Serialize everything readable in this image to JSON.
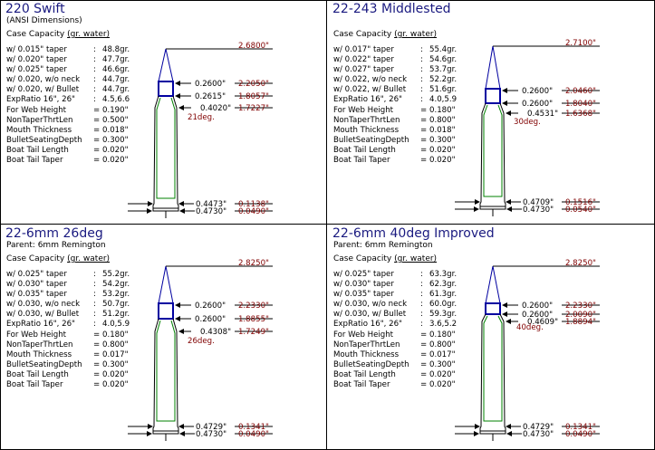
{
  "panels": [
    {
      "title": "220 Swift",
      "subtitle": "(ANSI Dimensions)",
      "capacity_label": "Case Capacity",
      "capacity_unit": "(gr. water)",
      "rows": [
        {
          "label": "w/  0.015\" taper",
          "sep": ":",
          "value": "48.8gr."
        },
        {
          "label": "w/  0.020\" taper",
          "sep": ":",
          "value": "47.7gr."
        },
        {
          "label": "w/  0.025\" taper",
          "sep": ":",
          "value": "46.6gr."
        },
        {
          "label": "w/  0.020,  w/o neck",
          "sep": ":",
          "value": "44.7gr."
        },
        {
          "label": "w/  0.020,  w/ Bullet",
          "sep": ":",
          "value": "44.7gr."
        },
        {
          "label": "ExpRatio 16\", 26\"",
          "sep": ":",
          "value": "4.5,6.6"
        },
        {
          "label": "For Web Height",
          "sep": "=",
          "value": "0.190\""
        },
        {
          "label": "NonTaperThrtLen",
          "sep": "=",
          "value": "0.500\""
        },
        {
          "label": "Mouth Thickness",
          "sep": "=",
          "value": "0.018\""
        },
        {
          "label": "BulletSeatingDepth",
          "sep": "=",
          "value": "0.300\""
        },
        {
          "label": "Boat Tail Length",
          "sep": "=",
          "value": "0.020\""
        },
        {
          "label": "Boat Tail Taper",
          "sep": "=",
          "value": "0.020\""
        }
      ],
      "dims": {
        "overall": "2.6800\"",
        "neck_dia": "0.2600\"",
        "neck_len": "2.2050\"",
        "shoulder_dia": "0.2615\"",
        "shoulder_len": "1.8057\"",
        "body_dia": "0.4020\"",
        "body_len": "1.7227\"",
        "angle": "21deg.",
        "base_dia": "0.4473\"",
        "base_len": "0.1138\"",
        "rim_dia": "0.4730\"",
        "rim_len": "0.0490\""
      }
    },
    {
      "title": "22-243 Middlested",
      "subtitle": "",
      "capacity_label": "Case Capacity",
      "capacity_unit": "(gr. water)",
      "rows": [
        {
          "label": "w/  0.017\" taper",
          "sep": ":",
          "value": "55.4gr."
        },
        {
          "label": "w/  0.022\" taper",
          "sep": ":",
          "value": "54.6gr."
        },
        {
          "label": "w/  0.027\" taper",
          "sep": ":",
          "value": "53.7gr."
        },
        {
          "label": "w/  0.022,  w/o neck",
          "sep": ":",
          "value": "52.2gr."
        },
        {
          "label": "w/  0.022,  w/ Bullet",
          "sep": ":",
          "value": "51.6gr."
        },
        {
          "label": "ExpRatio 16\", 26\"",
          "sep": ":",
          "value": "4.0,5.9"
        },
        {
          "label": "For Web Height",
          "sep": "=",
          "value": "0.180\""
        },
        {
          "label": "NonTaperThrtLen",
          "sep": "=",
          "value": "0.800\""
        },
        {
          "label": "Mouth Thickness",
          "sep": "=",
          "value": "0.018\""
        },
        {
          "label": "BulletSeatingDepth",
          "sep": "=",
          "value": "0.300\""
        },
        {
          "label": "Boat Tail Length",
          "sep": "=",
          "value": "0.020\""
        },
        {
          "label": "Boat Tail Taper",
          "sep": "=",
          "value": "0.020\""
        }
      ],
      "dims": {
        "overall": "2.7100\"",
        "neck_dia": "0.2600\"",
        "neck_len": "2.0460\"",
        "shoulder_dia": "0.2600\"",
        "shoulder_len": "1.8040\"",
        "body_dia": "0.4531\"",
        "body_len": "1.6368\"",
        "angle": "30deg.",
        "base_dia": "0.4709\"",
        "base_len": "0.1516\"",
        "rim_dia": "0.4730\"",
        "rim_len": "0.0540\""
      }
    },
    {
      "title": "22-6mm 26deg",
      "subtitle": "Parent: 6mm Remington",
      "capacity_label": "Case Capacity",
      "capacity_unit": "(gr. water)",
      "rows": [
        {
          "label": "w/  0.025\" taper",
          "sep": ":",
          "value": "55.2gr."
        },
        {
          "label": "w/  0.030\" taper",
          "sep": ":",
          "value": "54.2gr."
        },
        {
          "label": "w/  0.035\" taper",
          "sep": ":",
          "value": "53.2gr."
        },
        {
          "label": "w/  0.030,  w/o neck",
          "sep": ":",
          "value": "50.7gr."
        },
        {
          "label": "w/  0.030,  w/ Bullet",
          "sep": ":",
          "value": "51.2gr."
        },
        {
          "label": "ExpRatio 16\", 26\"",
          "sep": ":",
          "value": "4.0,5.9"
        },
        {
          "label": "For Web Height",
          "sep": "=",
          "value": "0.180\""
        },
        {
          "label": "NonTaperThrtLen",
          "sep": "=",
          "value": "0.800\""
        },
        {
          "label": "Mouth Thickness",
          "sep": "=",
          "value": "0.017\""
        },
        {
          "label": "BulletSeatingDepth",
          "sep": "=",
          "value": "0.300\""
        },
        {
          "label": "Boat Tail Length",
          "sep": "=",
          "value": "0.020\""
        },
        {
          "label": "Boat Tail Taper",
          "sep": "=",
          "value": "0.020\""
        }
      ],
      "dims": {
        "overall": "2.8250\"",
        "neck_dia": "0.2600\"",
        "neck_len": "2.2330\"",
        "shoulder_dia": "0.2600\"",
        "shoulder_len": "1.8855\"",
        "body_dia": "0.4308\"",
        "body_len": "1.7249\"",
        "angle": "26deg.",
        "base_dia": "0.4729\"",
        "base_len": "0.1341\"",
        "rim_dia": "0.4730\"",
        "rim_len": "0.0490\""
      }
    },
    {
      "title": "22-6mm 40deg Improved",
      "subtitle": "Parent: 6mm Remington",
      "capacity_label": "Case Capacity",
      "capacity_unit": "(gr. water)",
      "rows": [
        {
          "label": "w/  0.025\" taper",
          "sep": ":",
          "value": "63.3gr."
        },
        {
          "label": "w/  0.030\" taper",
          "sep": ":",
          "value": "62.3gr."
        },
        {
          "label": "w/  0.035\" taper",
          "sep": ":",
          "value": "61.3gr."
        },
        {
          "label": "w/  0.030,  w/o neck",
          "sep": ":",
          "value": "60.0gr."
        },
        {
          "label": "w/  0.030,  w/ Bullet",
          "sep": ":",
          "value": "59.3gr."
        },
        {
          "label": "ExpRatio 16\", 26\"",
          "sep": ":",
          "value": "3.6,5.2"
        },
        {
          "label": "For Web Height",
          "sep": "=",
          "value": "0.180\""
        },
        {
          "label": "NonTaperThrtLen",
          "sep": "=",
          "value": "0.800\""
        },
        {
          "label": "Mouth Thickness",
          "sep": "=",
          "value": "0.017\""
        },
        {
          "label": "BulletSeatingDepth",
          "sep": "=",
          "value": "0.300\""
        },
        {
          "label": "Boat Tail Length",
          "sep": "=",
          "value": "0.020\""
        },
        {
          "label": "Boat Tail Taper",
          "sep": "=",
          "value": "0.020\""
        }
      ],
      "dims": {
        "overall": "2.8250\"",
        "neck_dia": "0.2600\"",
        "neck_len": "2.2330\"",
        "shoulder_dia": "0.2600\"",
        "shoulder_len": "2.0090\"",
        "body_dia": "0.4609\"",
        "body_len": "1.8894\"",
        "angle": "40deg.",
        "base_dia": "0.4729\"",
        "base_len": "0.1341\"",
        "rim_dia": "0.4730\"",
        "rim_len": "0.0490\""
      }
    }
  ],
  "colors": {
    "title": "#1a1a80",
    "dimension_red": "#800000",
    "bullet_blue": "#0000a0",
    "case_green": "#008000"
  }
}
